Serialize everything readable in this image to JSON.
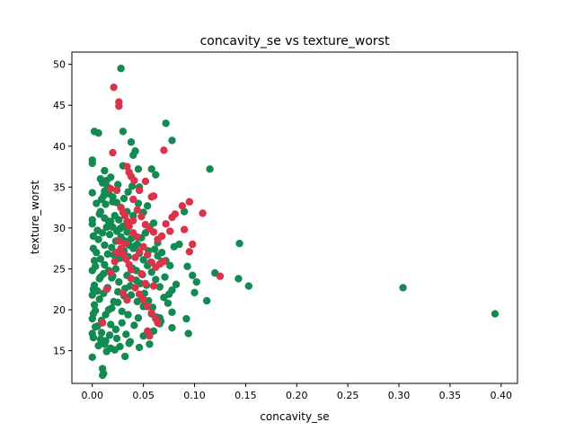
{
  "chart_data": {
    "type": "scatter",
    "title": "concavity_se vs texture_worst",
    "xlabel": "concavity_se",
    "ylabel": "texture_worst",
    "xlim": [
      -0.02,
      0.416
    ],
    "ylim": [
      11.0,
      51.5
    ],
    "xticks": [
      0.0,
      0.05,
      0.1,
      0.15,
      0.2,
      0.25,
      0.3,
      0.35,
      0.4
    ],
    "xtick_labels": [
      "0.00",
      "0.05",
      "0.10",
      "0.15",
      "0.20",
      "0.25",
      "0.30",
      "0.35",
      "0.40"
    ],
    "yticks": [
      15,
      20,
      25,
      30,
      35,
      40,
      45,
      50
    ],
    "ytick_labels": [
      "15",
      "20",
      "25",
      "30",
      "35",
      "40",
      "45",
      "50"
    ],
    "grid": false,
    "colors": {
      "green": "#138a52",
      "red": "#d8344a"
    },
    "series": [
      {
        "color": "#138a52",
        "points": [
          [
            0.028,
            49.5
          ],
          [
            0.072,
            42.8
          ],
          [
            0.002,
            41.8
          ],
          [
            0.006,
            41.6
          ],
          [
            0.03,
            41.8
          ],
          [
            0.038,
            40.5
          ],
          [
            0.078,
            40.7
          ],
          [
            0.0,
            38.3
          ],
          [
            0.0,
            37.9
          ],
          [
            0.115,
            37.2
          ],
          [
            0.012,
            37.0
          ],
          [
            0.045,
            37.2
          ],
          [
            0.058,
            37.2
          ],
          [
            0.062,
            36.5
          ],
          [
            0.008,
            36.0
          ],
          [
            0.01,
            35.5
          ],
          [
            0.014,
            35.8
          ],
          [
            0.018,
            36.2
          ],
          [
            0.025,
            35.3
          ],
          [
            0.03,
            37.6
          ],
          [
            0.04,
            38.9
          ],
          [
            0.042,
            39.4
          ],
          [
            0.046,
            35.0
          ],
          [
            0.012,
            34.5
          ],
          [
            0.016,
            34.2
          ],
          [
            0.02,
            33.8
          ],
          [
            0.024,
            33.1
          ],
          [
            0.028,
            32.5
          ],
          [
            0.034,
            32.0
          ],
          [
            0.04,
            31.5
          ],
          [
            0.0,
            34.3
          ],
          [
            0.004,
            33.0
          ],
          [
            0.008,
            32.0
          ],
          [
            0.012,
            31.2
          ],
          [
            0.016,
            30.8
          ],
          [
            0.02,
            30.1
          ],
          [
            0.024,
            29.6
          ],
          [
            0.028,
            28.9
          ],
          [
            0.032,
            28.4
          ],
          [
            0.036,
            27.9
          ],
          [
            0.04,
            27.5
          ],
          [
            0.044,
            28.0
          ],
          [
            0.048,
            28.8
          ],
          [
            0.052,
            29.4
          ],
          [
            0.056,
            30.1
          ],
          [
            0.06,
            30.6
          ],
          [
            0.064,
            28.2
          ],
          [
            0.068,
            27.0
          ],
          [
            0.072,
            26.0
          ],
          [
            0.076,
            25.4
          ],
          [
            0.08,
            27.7
          ],
          [
            0.085,
            28.0
          ],
          [
            0.09,
            32.0
          ],
          [
            0.093,
            25.3
          ],
          [
            0.098,
            24.2
          ],
          [
            0.102,
            23.4
          ],
          [
            0.1,
            22.1
          ],
          [
            0.112,
            21.1
          ],
          [
            0.12,
            24.5
          ],
          [
            0.143,
            23.8
          ],
          [
            0.144,
            28.1
          ],
          [
            0.153,
            22.9
          ],
          [
            0.304,
            22.7
          ],
          [
            0.394,
            19.5
          ],
          [
            0.0,
            31.0
          ],
          [
            0.0,
            30.5
          ],
          [
            0.001,
            29.0
          ],
          [
            0.001,
            27.5
          ],
          [
            0.002,
            26.0
          ],
          [
            0.0,
            24.8
          ],
          [
            0.002,
            23.0
          ],
          [
            0.001,
            22.5
          ],
          [
            0.0,
            21.8
          ],
          [
            0.002,
            20.6
          ],
          [
            0.001,
            19.5
          ],
          [
            0.0,
            18.9
          ],
          [
            0.003,
            17.9
          ],
          [
            0.0,
            17.1
          ],
          [
            0.001,
            16.6
          ],
          [
            0.0,
            14.2
          ],
          [
            0.01,
            12.8
          ],
          [
            0.011,
            12.2
          ],
          [
            0.01,
            12.0
          ],
          [
            0.006,
            15.6
          ],
          [
            0.008,
            16.4
          ],
          [
            0.012,
            15.8
          ],
          [
            0.014,
            14.9
          ],
          [
            0.018,
            15.3
          ],
          [
            0.022,
            15.1
          ],
          [
            0.032,
            14.3
          ],
          [
            0.036,
            15.9
          ],
          [
            0.046,
            15.4
          ],
          [
            0.05,
            16.8
          ],
          [
            0.056,
            15.8
          ],
          [
            0.06,
            17.4
          ],
          [
            0.066,
            18.3
          ],
          [
            0.078,
            17.8
          ],
          [
            0.094,
            17.1
          ],
          [
            0.092,
            18.9
          ],
          [
            0.078,
            19.7
          ],
          [
            0.066,
            19.0
          ],
          [
            0.058,
            19.5
          ],
          [
            0.05,
            20.4
          ],
          [
            0.044,
            21.0
          ],
          [
            0.038,
            21.8
          ],
          [
            0.032,
            22.6
          ],
          [
            0.026,
            23.4
          ],
          [
            0.02,
            24.1
          ],
          [
            0.016,
            24.8
          ],
          [
            0.012,
            25.5
          ],
          [
            0.008,
            26.2
          ],
          [
            0.004,
            27.0
          ],
          [
            0.006,
            28.6
          ],
          [
            0.01,
            29.4
          ],
          [
            0.014,
            30.1
          ],
          [
            0.018,
            30.8
          ],
          [
            0.022,
            31.5
          ],
          [
            0.026,
            31.0
          ],
          [
            0.03,
            30.2
          ],
          [
            0.034,
            29.5
          ],
          [
            0.038,
            28.7
          ],
          [
            0.042,
            27.8
          ],
          [
            0.046,
            26.9
          ],
          [
            0.05,
            26.1
          ],
          [
            0.054,
            25.4
          ],
          [
            0.058,
            24.6
          ],
          [
            0.062,
            23.7
          ],
          [
            0.066,
            22.8
          ],
          [
            0.07,
            21.5
          ],
          [
            0.074,
            20.8
          ],
          [
            0.078,
            22.4
          ],
          [
            0.082,
            23.1
          ],
          [
            0.068,
            25.9
          ],
          [
            0.064,
            26.6
          ],
          [
            0.055,
            27.2
          ],
          [
            0.049,
            24.3
          ],
          [
            0.043,
            23.6
          ],
          [
            0.037,
            22.9
          ],
          [
            0.031,
            21.7
          ],
          [
            0.025,
            20.9
          ],
          [
            0.019,
            20.2
          ],
          [
            0.013,
            19.4
          ],
          [
            0.009,
            18.7
          ],
          [
            0.005,
            18.0
          ],
          [
            0.003,
            19.9
          ],
          [
            0.007,
            21.3
          ],
          [
            0.011,
            22.0
          ],
          [
            0.015,
            22.7
          ],
          [
            0.019,
            23.9
          ],
          [
            0.023,
            25.0
          ],
          [
            0.027,
            26.3
          ],
          [
            0.031,
            27.2
          ],
          [
            0.035,
            26.5
          ],
          [
            0.039,
            25.1
          ],
          [
            0.043,
            24.8
          ],
          [
            0.047,
            23.2
          ],
          [
            0.051,
            22.0
          ],
          [
            0.055,
            21.1
          ],
          [
            0.059,
            20.3
          ],
          [
            0.063,
            19.1
          ],
          [
            0.067,
            18.6
          ],
          [
            0.071,
            24.0
          ],
          [
            0.075,
            21.9
          ],
          [
            0.035,
            19.4
          ],
          [
            0.029,
            18.4
          ],
          [
            0.023,
            17.6
          ],
          [
            0.017,
            16.9
          ],
          [
            0.013,
            16.2
          ],
          [
            0.009,
            17.2
          ],
          [
            0.005,
            22.3
          ],
          [
            0.007,
            23.8
          ],
          [
            0.011,
            24.4
          ],
          [
            0.015,
            26.8
          ],
          [
            0.019,
            27.6
          ],
          [
            0.023,
            28.4
          ],
          [
            0.027,
            29.9
          ],
          [
            0.031,
            33.6
          ],
          [
            0.035,
            34.4
          ],
          [
            0.039,
            35.1
          ],
          [
            0.045,
            33.0
          ],
          [
            0.05,
            31.9
          ],
          [
            0.054,
            32.7
          ],
          [
            0.009,
            33.5
          ],
          [
            0.013,
            32.9
          ],
          [
            0.017,
            29.2
          ],
          [
            0.021,
            26.7
          ],
          [
            0.025,
            22.2
          ],
          [
            0.029,
            19.8
          ],
          [
            0.033,
            17.0
          ],
          [
            0.037,
            16.1
          ],
          [
            0.041,
            18.1
          ],
          [
            0.045,
            19.0
          ],
          [
            0.049,
            21.5
          ],
          [
            0.053,
            23.0
          ],
          [
            0.057,
            25.8
          ],
          [
            0.061,
            27.4
          ],
          [
            0.003,
            25.3
          ],
          [
            0.005,
            29.7
          ],
          [
            0.007,
            31.7
          ],
          [
            0.011,
            33.9
          ],
          [
            0.015,
            35.0
          ],
          [
            0.018,
            18.2
          ],
          [
            0.021,
            21.0
          ],
          [
            0.024,
            16.5
          ],
          [
            0.027,
            15.5
          ],
          [
            0.016,
            20.0
          ],
          [
            0.012,
            27.9
          ],
          [
            0.008,
            24.0
          ],
          [
            0.02,
            33.2
          ],
          [
            0.034,
            24.2
          ]
        ]
      },
      {
        "color": "#d8344a",
        "points": [
          [
            0.021,
            47.2
          ],
          [
            0.026,
            45.4
          ],
          [
            0.026,
            44.9
          ],
          [
            0.02,
            39.2
          ],
          [
            0.07,
            39.5
          ],
          [
            0.034,
            37.5
          ],
          [
            0.036,
            36.8
          ],
          [
            0.038,
            36.3
          ],
          [
            0.041,
            35.8
          ],
          [
            0.052,
            35.7
          ],
          [
            0.024,
            34.6
          ],
          [
            0.018,
            34.8
          ],
          [
            0.04,
            33.5
          ],
          [
            0.046,
            34.6
          ],
          [
            0.058,
            33.8
          ],
          [
            0.06,
            33.9
          ],
          [
            0.028,
            32.5
          ],
          [
            0.03,
            31.9
          ],
          [
            0.032,
            31.5
          ],
          [
            0.034,
            30.8
          ],
          [
            0.036,
            30.2
          ],
          [
            0.04,
            30.9
          ],
          [
            0.044,
            32.2
          ],
          [
            0.048,
            31.4
          ],
          [
            0.052,
            30.4
          ],
          [
            0.056,
            29.9
          ],
          [
            0.06,
            29.5
          ],
          [
            0.064,
            28.6
          ],
          [
            0.068,
            29.0
          ],
          [
            0.072,
            30.5
          ],
          [
            0.076,
            29.6
          ],
          [
            0.078,
            31.3
          ],
          [
            0.081,
            31.7
          ],
          [
            0.088,
            32.7
          ],
          [
            0.09,
            29.8
          ],
          [
            0.095,
            33.2
          ],
          [
            0.108,
            31.8
          ],
          [
            0.098,
            28.0
          ],
          [
            0.095,
            27.1
          ],
          [
            0.125,
            24.1
          ],
          [
            0.026,
            28.4
          ],
          [
            0.028,
            27.5
          ],
          [
            0.03,
            26.8
          ],
          [
            0.033,
            26.2
          ],
          [
            0.036,
            25.5
          ],
          [
            0.038,
            24.9
          ],
          [
            0.042,
            26.4
          ],
          [
            0.046,
            27.1
          ],
          [
            0.05,
            27.7
          ],
          [
            0.054,
            26.7
          ],
          [
            0.058,
            25.8
          ],
          [
            0.062,
            25.2
          ],
          [
            0.066,
            25.6
          ],
          [
            0.07,
            25.9
          ],
          [
            0.044,
            28.9
          ],
          [
            0.04,
            29.4
          ],
          [
            0.038,
            23.8
          ],
          [
            0.042,
            22.7
          ],
          [
            0.046,
            21.9
          ],
          [
            0.05,
            21.2
          ],
          [
            0.054,
            20.4
          ],
          [
            0.058,
            19.6
          ],
          [
            0.062,
            18.9
          ],
          [
            0.064,
            18.4
          ],
          [
            0.054,
            17.4
          ],
          [
            0.056,
            16.8
          ],
          [
            0.01,
            18.4
          ],
          [
            0.014,
            22.5
          ],
          [
            0.018,
            24.5
          ],
          [
            0.022,
            25.9
          ],
          [
            0.024,
            27.0
          ],
          [
            0.032,
            28.1
          ],
          [
            0.048,
            24.4
          ],
          [
            0.052,
            23.2
          ],
          [
            0.03,
            22.0
          ],
          [
            0.034,
            21.2
          ],
          [
            0.06,
            22.9
          ]
        ]
      }
    ]
  }
}
